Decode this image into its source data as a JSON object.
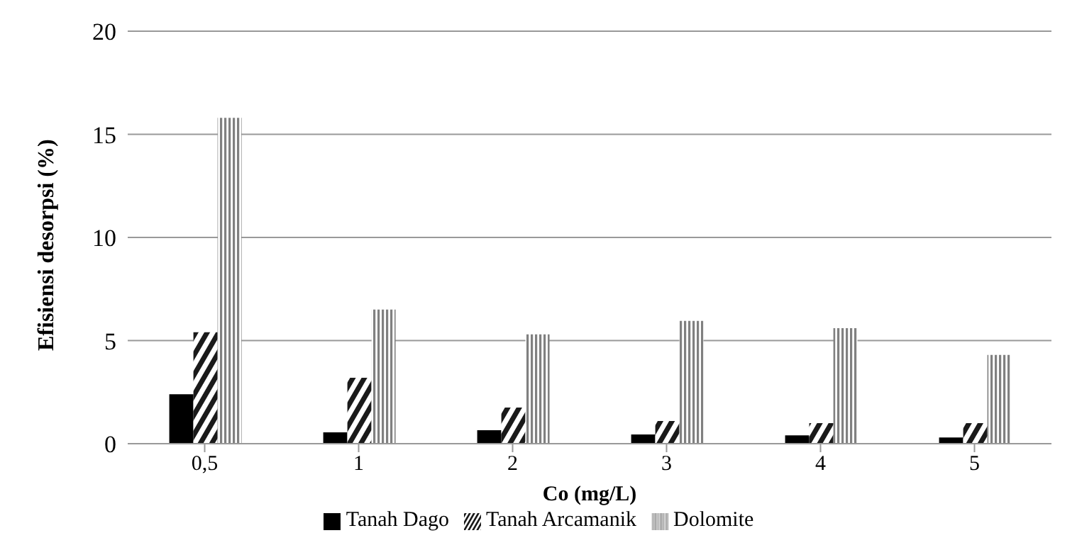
{
  "chart_data": {
    "type": "bar",
    "xlabel": "Co (mg/L)",
    "ylabel": "Efisiensi desorpsi (%)",
    "categories": [
      "0,5",
      "1",
      "2",
      "3",
      "4",
      "5"
    ],
    "series": [
      {
        "name": "Tanah Dago",
        "color": "#000000",
        "values": [
          2.4,
          0.55,
          0.65,
          0.45,
          0.4,
          0.3
        ]
      },
      {
        "name": "Tanah Arcamanik",
        "color": "#1a1a1a",
        "values": [
          5.4,
          3.2,
          1.75,
          1.1,
          1.0,
          1.0
        ]
      },
      {
        "name": "Dolomite",
        "color": "#808080",
        "values": [
          15.8,
          6.5,
          5.3,
          5.95,
          5.6,
          4.3
        ]
      }
    ],
    "ylim": [
      0,
      20
    ],
    "yticks": [
      0,
      5,
      10,
      15,
      20
    ],
    "grid": "y",
    "legend": "bottom"
  }
}
